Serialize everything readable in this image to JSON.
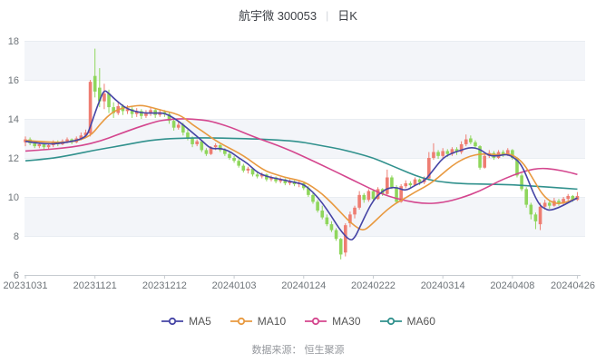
{
  "header": {
    "title_stock": "航宇微 300053",
    "separator": "|",
    "title_period": "日K"
  },
  "footer": {
    "source_label": "数据来源： 恒生聚源"
  },
  "legend": [
    {
      "label": "MA5",
      "color": "#4544a5"
    },
    {
      "label": "MA10",
      "color": "#e8993f"
    },
    {
      "label": "MA30",
      "color": "#d4468e"
    },
    {
      "label": "MA60",
      "color": "#31918d"
    }
  ],
  "style": {
    "up_color": "#ee7d72",
    "down_color": "#8fd65c",
    "ma5": "#4544a5",
    "ma10": "#e8993f",
    "ma30": "#d4468e",
    "ma60": "#31918d",
    "band": "#f3f5f9",
    "grid": "#e9edf2",
    "axis": "#c6cbd0",
    "label": "#6e7479"
  },
  "chart_data": {
    "type": "candlestick",
    "title": "航宇微 300053 日K",
    "period": "daily",
    "ylim": [
      6,
      18
    ],
    "y_ticks": [
      18,
      16,
      14,
      12,
      10,
      8,
      6
    ],
    "band_ranges": [
      [
        16,
        18
      ],
      [
        12,
        14
      ],
      [
        8,
        10
      ]
    ],
    "x_tick_labels": [
      "20231031",
      "20231121",
      "20231212",
      "20240103",
      "20240124",
      "20240222",
      "20240314",
      "20240408",
      "20240426"
    ],
    "x_tick_day_index": [
      0,
      15,
      30,
      45,
      60,
      75,
      90,
      105,
      119
    ],
    "num_days": 120,
    "up_means": "close >= open (red)",
    "down_means": "close < open (green)",
    "candles": [
      [
        12.8,
        13.1,
        12.6,
        12.95
      ],
      [
        12.95,
        13.05,
        12.65,
        12.75
      ],
      [
        12.75,
        12.85,
        12.5,
        12.6
      ],
      [
        12.6,
        12.8,
        12.5,
        12.7
      ],
      [
        12.7,
        12.75,
        12.4,
        12.55
      ],
      [
        12.55,
        12.75,
        12.45,
        12.65
      ],
      [
        12.65,
        12.9,
        12.55,
        12.8
      ],
      [
        12.8,
        12.9,
        12.6,
        12.7
      ],
      [
        12.7,
        12.95,
        12.65,
        12.85
      ],
      [
        12.85,
        13.05,
        12.75,
        12.95
      ],
      [
        12.95,
        13.0,
        12.7,
        12.8
      ],
      [
        12.8,
        13.1,
        12.75,
        13.0
      ],
      [
        13.0,
        13.3,
        12.9,
        13.15
      ],
      [
        13.15,
        13.45,
        13.05,
        13.3
      ],
      [
        13.25,
        16.0,
        13.1,
        15.9
      ],
      [
        16.2,
        17.6,
        15.1,
        15.4
      ],
      [
        15.6,
        16.6,
        14.6,
        14.9
      ],
      [
        14.9,
        15.8,
        14.5,
        15.3
      ],
      [
        15.3,
        15.5,
        14.3,
        14.6
      ],
      [
        14.6,
        14.85,
        14.05,
        14.3
      ],
      [
        14.3,
        14.9,
        14.2,
        14.65
      ],
      [
        14.65,
        14.75,
        14.2,
        14.4
      ],
      [
        14.4,
        14.7,
        14.25,
        14.5
      ],
      [
        14.5,
        14.6,
        14.05,
        14.25
      ],
      [
        14.25,
        14.55,
        14.1,
        14.4
      ],
      [
        14.4,
        14.5,
        14.0,
        14.15
      ],
      [
        14.15,
        14.45,
        14.05,
        14.3
      ],
      [
        14.3,
        14.6,
        14.15,
        14.45
      ],
      [
        14.45,
        14.55,
        14.05,
        14.2
      ],
      [
        14.2,
        14.5,
        14.1,
        14.35
      ],
      [
        14.35,
        14.45,
        14.1,
        14.25
      ],
      [
        14.25,
        14.35,
        13.75,
        13.9
      ],
      [
        13.9,
        14.0,
        13.4,
        13.55
      ],
      [
        13.55,
        13.85,
        13.45,
        13.7
      ],
      [
        13.7,
        13.8,
        13.15,
        13.3
      ],
      [
        13.3,
        13.45,
        12.9,
        13.0
      ],
      [
        13.0,
        13.1,
        12.55,
        12.7
      ],
      [
        12.7,
        12.95,
        12.6,
        12.85
      ],
      [
        12.85,
        12.9,
        12.3,
        12.4
      ],
      [
        12.4,
        12.5,
        12.1,
        12.2
      ],
      [
        12.2,
        12.6,
        12.15,
        12.55
      ],
      [
        12.55,
        12.75,
        12.4,
        12.65
      ],
      [
        12.65,
        12.7,
        12.3,
        12.4
      ],
      [
        12.4,
        12.5,
        12.1,
        12.2
      ],
      [
        12.2,
        12.3,
        11.9,
        12.0
      ],
      [
        12.0,
        12.1,
        11.75,
        11.85
      ],
      [
        11.85,
        11.95,
        11.5,
        11.6
      ],
      [
        11.6,
        11.7,
        11.25,
        11.35
      ],
      [
        11.35,
        11.55,
        11.2,
        11.45
      ],
      [
        11.45,
        11.5,
        11.05,
        11.15
      ],
      [
        11.15,
        11.3,
        10.95,
        11.05
      ],
      [
        11.05,
        11.25,
        10.95,
        11.15
      ],
      [
        11.15,
        11.2,
        10.8,
        10.9
      ],
      [
        10.9,
        11.1,
        10.8,
        11.0
      ],
      [
        11.0,
        11.05,
        10.7,
        10.8
      ],
      [
        10.8,
        11.0,
        10.7,
        10.9
      ],
      [
        10.9,
        10.95,
        10.6,
        10.7
      ],
      [
        10.7,
        10.9,
        10.6,
        10.8
      ],
      [
        10.8,
        10.85,
        10.55,
        10.65
      ],
      [
        10.65,
        10.8,
        10.5,
        10.7
      ],
      [
        10.7,
        10.75,
        10.35,
        10.45
      ],
      [
        10.45,
        10.55,
        10.0,
        10.1
      ],
      [
        10.1,
        10.2,
        9.65,
        9.75
      ],
      [
        9.75,
        9.85,
        9.2,
        9.3
      ],
      [
        9.3,
        9.55,
        8.85,
        8.95
      ],
      [
        8.95,
        9.1,
        8.5,
        8.6
      ],
      [
        8.6,
        8.75,
        8.2,
        8.3
      ],
      [
        8.3,
        8.4,
        7.75,
        7.85
      ],
      [
        7.85,
        7.9,
        6.8,
        7.05
      ],
      [
        7.15,
        8.65,
        6.95,
        8.55
      ],
      [
        8.65,
        9.25,
        8.45,
        9.1
      ],
      [
        9.1,
        9.55,
        8.9,
        9.45
      ],
      [
        9.45,
        10.3,
        9.35,
        10.1
      ],
      [
        10.1,
        10.2,
        9.7,
        9.85
      ],
      [
        9.85,
        10.4,
        9.75,
        10.3
      ],
      [
        10.3,
        10.35,
        9.8,
        9.9
      ],
      [
        9.9,
        10.5,
        9.85,
        10.4
      ],
      [
        10.4,
        10.45,
        10.05,
        10.15
      ],
      [
        10.15,
        11.4,
        10.1,
        11.0
      ],
      [
        11.0,
        11.1,
        10.4,
        10.5
      ],
      [
        10.5,
        10.6,
        9.65,
        9.75
      ],
      [
        9.75,
        10.65,
        9.7,
        10.55
      ],
      [
        10.55,
        10.85,
        10.45,
        10.7
      ],
      [
        10.7,
        10.8,
        10.45,
        10.6
      ],
      [
        10.6,
        11.0,
        10.55,
        10.9
      ],
      [
        10.9,
        10.95,
        10.6,
        10.75
      ],
      [
        10.75,
        11.05,
        10.65,
        10.95
      ],
      [
        10.95,
        12.3,
        10.85,
        12.0
      ],
      [
        12.0,
        12.75,
        11.9,
        12.3
      ],
      [
        12.3,
        12.4,
        11.95,
        12.1
      ],
      [
        12.1,
        12.5,
        12.0,
        12.35
      ],
      [
        12.35,
        12.45,
        12.05,
        12.2
      ],
      [
        12.2,
        12.55,
        12.1,
        12.45
      ],
      [
        12.45,
        12.55,
        12.15,
        12.3
      ],
      [
        12.3,
        12.85,
        12.2,
        12.7
      ],
      [
        12.7,
        13.2,
        12.6,
        12.95
      ],
      [
        13.0,
        13.15,
        12.7,
        12.8
      ],
      [
        12.8,
        12.9,
        12.5,
        12.6
      ],
      [
        12.6,
        12.65,
        11.4,
        11.5
      ],
      [
        11.5,
        12.2,
        11.45,
        12.1
      ],
      [
        12.1,
        12.4,
        12.0,
        12.25
      ],
      [
        12.25,
        12.35,
        11.9,
        12.0
      ],
      [
        12.0,
        12.4,
        11.95,
        12.3
      ],
      [
        12.3,
        12.4,
        12.05,
        12.15
      ],
      [
        12.15,
        12.5,
        12.1,
        12.4
      ],
      [
        12.4,
        12.45,
        11.9,
        12.0
      ],
      [
        12.0,
        12.05,
        11.0,
        11.1
      ],
      [
        11.1,
        11.2,
        10.3,
        10.4
      ],
      [
        10.4,
        10.5,
        9.45,
        9.6
      ],
      [
        9.6,
        9.7,
        8.85,
        9.1
      ],
      [
        9.1,
        9.2,
        8.35,
        8.75
      ],
      [
        8.6,
        9.7,
        8.3,
        9.5
      ],
      [
        9.5,
        9.85,
        9.35,
        9.7
      ],
      [
        9.7,
        9.8,
        9.4,
        9.55
      ],
      [
        9.55,
        9.95,
        9.5,
        9.8
      ],
      [
        9.8,
        9.9,
        9.55,
        9.7
      ],
      [
        9.7,
        10.0,
        9.6,
        9.9
      ],
      [
        9.9,
        10.15,
        9.8,
        10.05
      ],
      [
        10.05,
        10.1,
        9.75,
        9.85
      ],
      [
        9.85,
        10.25,
        9.8,
        10.05
      ]
    ],
    "ma5_knots": [
      [
        0,
        12.85
      ],
      [
        4,
        12.7
      ],
      [
        8,
        12.75
      ],
      [
        13,
        13.0
      ],
      [
        14,
        13.6
      ],
      [
        15,
        14.3
      ],
      [
        16,
        14.95
      ],
      [
        17,
        15.5
      ],
      [
        18,
        15.3
      ],
      [
        20,
        14.85
      ],
      [
        22,
        14.5
      ],
      [
        25,
        14.3
      ],
      [
        28,
        14.3
      ],
      [
        30,
        14.3
      ],
      [
        32,
        14.05
      ],
      [
        34,
        13.7
      ],
      [
        36,
        13.3
      ],
      [
        38,
        12.9
      ],
      [
        40,
        12.45
      ],
      [
        42,
        12.5
      ],
      [
        44,
        12.35
      ],
      [
        46,
        12.0
      ],
      [
        48,
        11.7
      ],
      [
        50,
        11.25
      ],
      [
        52,
        11.05
      ],
      [
        54,
        10.95
      ],
      [
        56,
        10.85
      ],
      [
        58,
        10.75
      ],
      [
        60,
        10.65
      ],
      [
        62,
        10.25
      ],
      [
        64,
        9.7
      ],
      [
        66,
        9.0
      ],
      [
        68,
        8.25
      ],
      [
        70,
        7.75
      ],
      [
        71,
        7.9
      ],
      [
        72,
        8.4
      ],
      [
        74,
        9.4
      ],
      [
        75,
        9.8
      ],
      [
        76,
        10.1
      ],
      [
        78,
        10.45
      ],
      [
        80,
        10.5
      ],
      [
        82,
        10.3
      ],
      [
        84,
        10.6
      ],
      [
        86,
        10.8
      ],
      [
        88,
        11.4
      ],
      [
        90,
        12.0
      ],
      [
        92,
        12.25
      ],
      [
        94,
        12.4
      ],
      [
        96,
        12.55
      ],
      [
        98,
        12.45
      ],
      [
        100,
        12.1
      ],
      [
        102,
        12.1
      ],
      [
        104,
        12.2
      ],
      [
        106,
        11.9
      ],
      [
        107,
        11.6
      ],
      [
        108,
        11.1
      ],
      [
        109,
        10.5
      ],
      [
        110,
        9.95
      ],
      [
        111,
        9.55
      ],
      [
        112,
        9.4
      ],
      [
        113,
        9.3
      ],
      [
        115,
        9.45
      ],
      [
        117,
        9.7
      ],
      [
        119,
        9.95
      ]
    ],
    "ma10_knots": [
      [
        0,
        12.9
      ],
      [
        5,
        12.8
      ],
      [
        10,
        12.8
      ],
      [
        14,
        13.1
      ],
      [
        16,
        13.7
      ],
      [
        18,
        14.2
      ],
      [
        20,
        14.5
      ],
      [
        23,
        14.65
      ],
      [
        25,
        14.7
      ],
      [
        27,
        14.6
      ],
      [
        30,
        14.4
      ],
      [
        32,
        14.3
      ],
      [
        34,
        14.1
      ],
      [
        36,
        13.7
      ],
      [
        38,
        13.4
      ],
      [
        40,
        13.05
      ],
      [
        42,
        12.75
      ],
      [
        44,
        12.5
      ],
      [
        46,
        12.25
      ],
      [
        48,
        11.95
      ],
      [
        50,
        11.6
      ],
      [
        52,
        11.3
      ],
      [
        54,
        11.15
      ],
      [
        56,
        11.0
      ],
      [
        58,
        10.9
      ],
      [
        60,
        10.78
      ],
      [
        62,
        10.5
      ],
      [
        64,
        10.15
      ],
      [
        66,
        9.7
      ],
      [
        68,
        9.2
      ],
      [
        70,
        8.7
      ],
      [
        72,
        8.35
      ],
      [
        73,
        8.3
      ],
      [
        74,
        8.45
      ],
      [
        76,
        8.9
      ],
      [
        78,
        9.35
      ],
      [
        80,
        9.7
      ],
      [
        82,
        9.95
      ],
      [
        84,
        10.25
      ],
      [
        86,
        10.5
      ],
      [
        88,
        10.8
      ],
      [
        90,
        11.2
      ],
      [
        92,
        11.6
      ],
      [
        94,
        11.9
      ],
      [
        96,
        12.1
      ],
      [
        98,
        12.2
      ],
      [
        100,
        12.2
      ],
      [
        102,
        12.15
      ],
      [
        104,
        12.2
      ],
      [
        105,
        12.15
      ],
      [
        106,
        12.0
      ],
      [
        107,
        11.8
      ],
      [
        108,
        11.5
      ],
      [
        109,
        11.1
      ],
      [
        110,
        10.7
      ],
      [
        111,
        10.3
      ],
      [
        112,
        10.0
      ],
      [
        113,
        9.8
      ],
      [
        114,
        9.7
      ],
      [
        115,
        9.65
      ],
      [
        117,
        9.75
      ],
      [
        119,
        9.95
      ]
    ],
    "ma30_knots": [
      [
        0,
        12.35
      ],
      [
        4,
        12.42
      ],
      [
        8,
        12.5
      ],
      [
        12,
        12.62
      ],
      [
        16,
        12.85
      ],
      [
        20,
        13.2
      ],
      [
        24,
        13.55
      ],
      [
        28,
        13.85
      ],
      [
        30,
        13.95
      ],
      [
        34,
        14.02
      ],
      [
        38,
        13.95
      ],
      [
        40,
        13.88
      ],
      [
        44,
        13.6
      ],
      [
        49,
        13.1
      ],
      [
        56,
        12.5
      ],
      [
        62,
        11.85
      ],
      [
        69,
        11.05
      ],
      [
        75,
        10.35
      ],
      [
        78,
        10.05
      ],
      [
        82,
        9.8
      ],
      [
        86,
        9.65
      ],
      [
        90,
        9.7
      ],
      [
        94,
        9.95
      ],
      [
        98,
        10.3
      ],
      [
        102,
        10.8
      ],
      [
        105,
        11.1
      ],
      [
        108,
        11.35
      ],
      [
        111,
        11.48
      ],
      [
        114,
        11.42
      ],
      [
        117,
        11.28
      ],
      [
        119,
        11.15
      ]
    ],
    "ma60_knots": [
      [
        0,
        11.85
      ],
      [
        5,
        11.95
      ],
      [
        10,
        12.15
      ],
      [
        15,
        12.4
      ],
      [
        20,
        12.6
      ],
      [
        26,
        12.87
      ],
      [
        30,
        12.97
      ],
      [
        35,
        13.02
      ],
      [
        40,
        13.03
      ],
      [
        45,
        13.0
      ],
      [
        50,
        12.97
      ],
      [
        56,
        12.9
      ],
      [
        60,
        12.8
      ],
      [
        64,
        12.62
      ],
      [
        68,
        12.45
      ],
      [
        72,
        12.2
      ],
      [
        75,
        12.0
      ],
      [
        78,
        11.7
      ],
      [
        81,
        11.4
      ],
      [
        84,
        11.1
      ],
      [
        87,
        10.88
      ],
      [
        90,
        10.76
      ],
      [
        94,
        10.68
      ],
      [
        100,
        10.65
      ],
      [
        105,
        10.62
      ],
      [
        110,
        10.55
      ],
      [
        115,
        10.47
      ],
      [
        119,
        10.4
      ]
    ]
  }
}
